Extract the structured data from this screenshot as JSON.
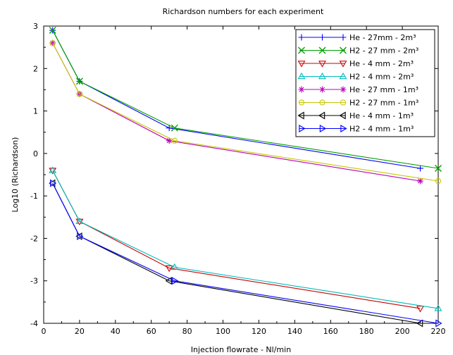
{
  "chart_data": {
    "type": "line",
    "title": "Richardson numbers for each experiment",
    "xlabel": "Injection flowrate - Nl/min",
    "ylabel": "Log10 (Richardson)",
    "xlim": [
      0,
      220
    ],
    "ylim": [
      -4,
      3
    ],
    "xticks": [
      0,
      20,
      40,
      60,
      80,
      100,
      120,
      140,
      160,
      180,
      200,
      220
    ],
    "yticks": [
      -4,
      -3,
      -2,
      -1,
      0,
      1,
      2,
      3
    ],
    "grid": false,
    "legend_position": "top-right",
    "series": [
      {
        "name": "He - 27mm - 2m³",
        "color": "#0000ff",
        "marker": "plus",
        "x": [
          5,
          20,
          70,
          210
        ],
        "y": [
          2.9,
          1.7,
          0.6,
          -0.35
        ]
      },
      {
        "name": "H2 - 27 mm - 2m³",
        "color": "#00a000",
        "marker": "x",
        "x": [
          5,
          20,
          73,
          220
        ],
        "y": [
          2.9,
          1.7,
          0.6,
          -0.35
        ]
      },
      {
        "name": "He - 4 mm - 2m³",
        "color": "#cc0000",
        "marker": "triangle-down",
        "x": [
          5,
          20,
          70,
          210
        ],
        "y": [
          -0.4,
          -1.6,
          -2.7,
          -3.65
        ]
      },
      {
        "name": "H2 - 4 mm - 2m³",
        "color": "#00bbbb",
        "marker": "triangle-up",
        "x": [
          5,
          20,
          73,
          220
        ],
        "y": [
          -0.4,
          -1.6,
          -2.68,
          -3.65
        ]
      },
      {
        "name": "He - 27 mm - 1m³",
        "color": "#bb00bb",
        "marker": "star",
        "x": [
          5,
          20,
          70,
          210
        ],
        "y": [
          2.6,
          1.4,
          0.3,
          -0.65
        ]
      },
      {
        "name": "H2 - 27 mm - 1m³",
        "color": "#c8c800",
        "marker": "circle",
        "x": [
          5,
          20,
          73,
          220
        ],
        "y": [
          2.6,
          1.4,
          0.3,
          -0.65
        ]
      },
      {
        "name": "He - 4 mm - 1m³",
        "color": "#000000",
        "marker": "triangle-left",
        "x": [
          5,
          20,
          70,
          210
        ],
        "y": [
          -0.7,
          -1.95,
          -3.0,
          -4.0
        ]
      },
      {
        "name": "H2 - 4 mm - 1m³",
        "color": "#0000ff",
        "marker": "triangle-right",
        "x": [
          5,
          20,
          73,
          220
        ],
        "y": [
          -0.7,
          -1.95,
          -3.0,
          -4.0
        ]
      }
    ]
  }
}
